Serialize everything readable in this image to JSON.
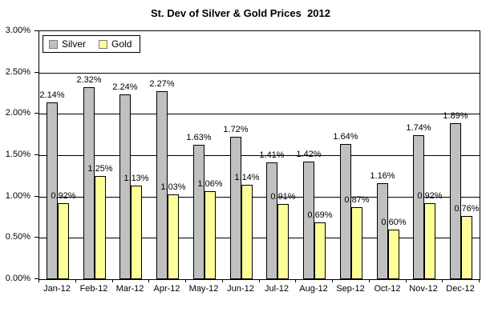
{
  "chart_data": {
    "type": "bar",
    "title": "St. Dev of Silver & Gold Prices  2012",
    "categories": [
      "Jan-12",
      "Feb-12",
      "Mar-12",
      "Apr-12",
      "May-12",
      "Jun-12",
      "Jul-12",
      "Aug-12",
      "Sep-12",
      "Oct-12",
      "Nov-12",
      "Dec-12"
    ],
    "series": [
      {
        "name": "Silver",
        "color": "#C0C0C0",
        "values": [
          2.14,
          2.32,
          2.24,
          2.27,
          1.63,
          1.72,
          1.41,
          1.42,
          1.64,
          1.16,
          1.74,
          1.89
        ]
      },
      {
        "name": "Gold",
        "color": "#FFFF99",
        "values": [
          0.92,
          1.25,
          1.13,
          1.03,
          1.06,
          1.14,
          0.91,
          0.69,
          0.87,
          0.6,
          0.92,
          0.76
        ]
      }
    ],
    "data_label_format": "0.00%",
    "y_ticks": [
      "0.00%",
      "0.50%",
      "1.00%",
      "1.50%",
      "2.00%",
      "2.50%",
      "3.00%"
    ],
    "ylim": [
      0,
      3
    ],
    "grid": true,
    "legend_position": "top-left-inside",
    "colors": {
      "plot_border": "#000000",
      "gridline": "#000000",
      "text": "#000000",
      "background": "#ffffff"
    }
  }
}
